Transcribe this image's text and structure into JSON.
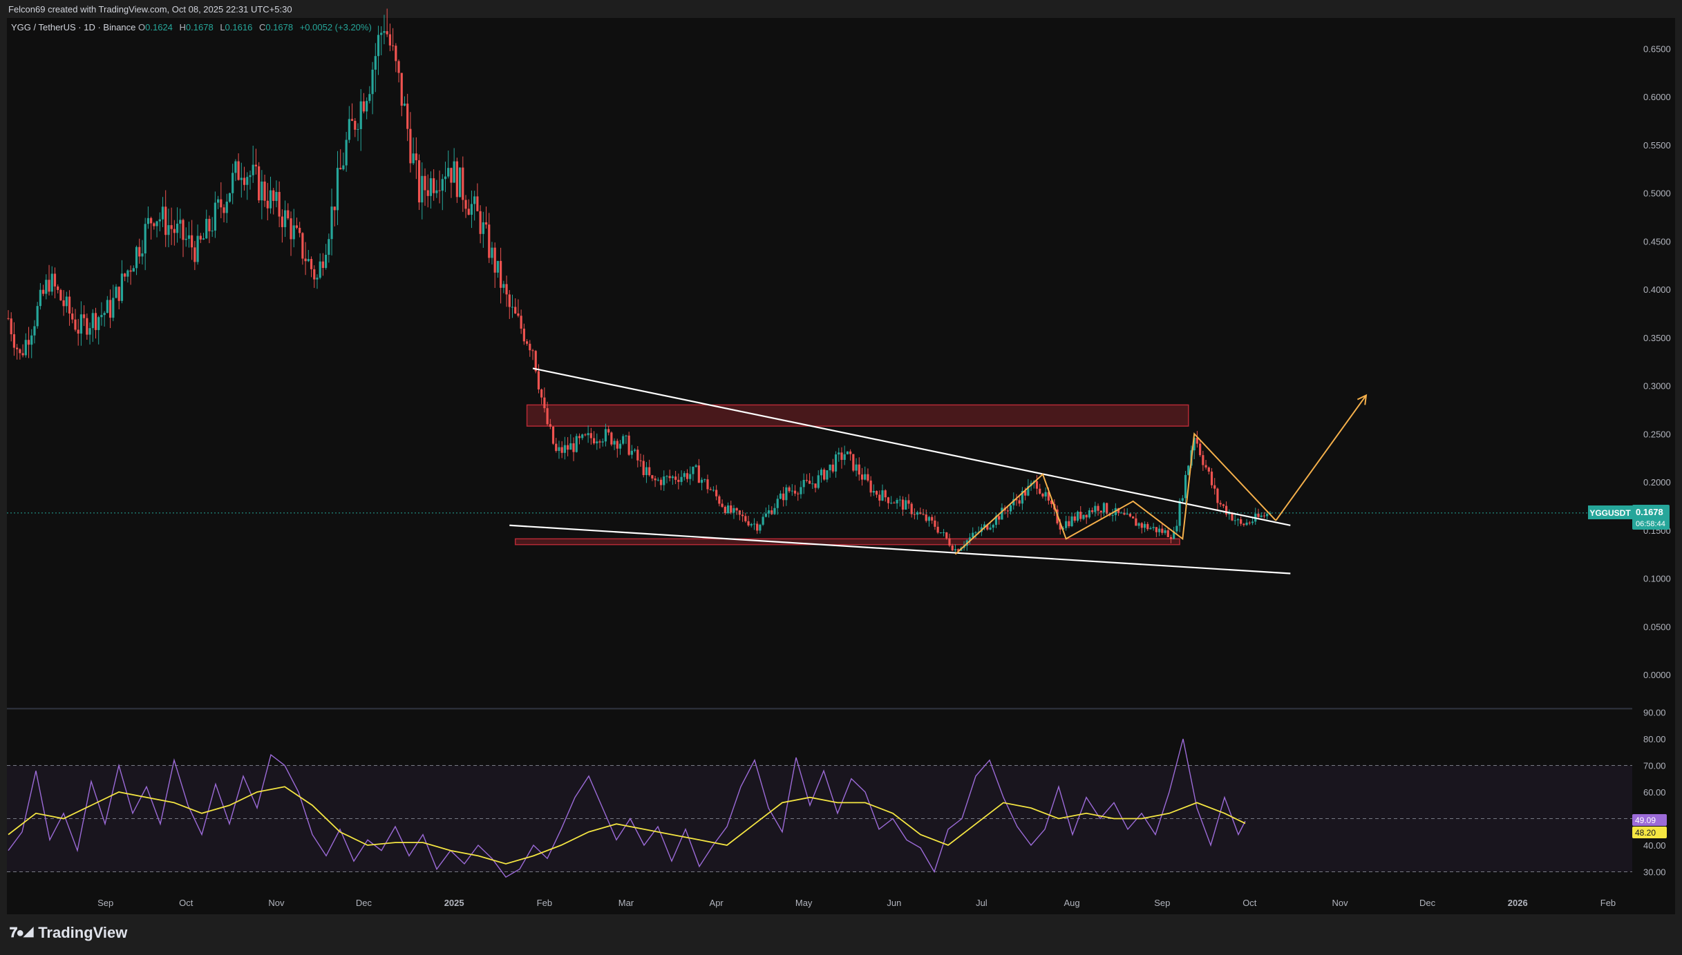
{
  "header": {
    "creator_text": "Felcon69 created with TradingView.com, Oct 08, 2025 22:31 UTC+5:30"
  },
  "legend": {
    "symbol": "YGG / TetherUS · 1D · Binance",
    "open_label": "O",
    "open": "0.1624",
    "high_label": "H",
    "high": "0.1678",
    "low_label": "L",
    "low": "0.1616",
    "close_label": "C",
    "close": "0.1678",
    "change": "+0.0052 (+3.20%)"
  },
  "price_badge": {
    "ticker": "YGGUSDT",
    "price": "0.1678",
    "countdown": "06:58:44"
  },
  "rsi_badges": {
    "rsi": "49.09",
    "ma": "48.20"
  },
  "footer": {
    "brand": "TradingView"
  },
  "colors": {
    "up": "#26a69a",
    "down": "#ef5350",
    "rsi": "#9c6bd8",
    "rsi_ma": "#f5e642",
    "zone": "#b52a35",
    "projection": "#f5b04b",
    "trendline": "#ffffff",
    "background": "#0f0f0f"
  },
  "chart_data": [
    {
      "type": "candlestick",
      "title": "YGG / TetherUS · 1D · Binance",
      "y_ticks": [
        "0.6500",
        "0.6000",
        "0.5500",
        "0.5000",
        "0.4500",
        "0.4000",
        "0.3500",
        "0.3000",
        "0.2500",
        "0.2000",
        "0.1500",
        "0.1000",
        "0.0500",
        "0.0000"
      ],
      "x_ticks": [
        "Sep",
        "Oct",
        "Nov",
        "Dec",
        "2025",
        "Feb",
        "Mar",
        "Apr",
        "May",
        "Jun",
        "Jul",
        "Aug",
        "Sep",
        "Oct",
        "Nov",
        "Dec",
        "2026",
        "Feb"
      ],
      "ylim": [
        0,
        0.68
      ],
      "last_price": 0.1678,
      "price_path": [
        [
          "2024-08-01",
          0.37
        ],
        [
          "2024-08-05",
          0.33
        ],
        [
          "2024-08-15",
          0.41
        ],
        [
          "2024-08-25",
          0.36
        ],
        [
          "2024-09-05",
          0.38
        ],
        [
          "2024-09-20",
          0.48
        ],
        [
          "2024-10-05",
          0.44
        ],
        [
          "2024-10-20",
          0.53
        ],
        [
          "2024-11-05",
          0.47
        ],
        [
          "2024-11-15",
          0.41
        ],
        [
          "2024-11-25",
          0.55
        ],
        [
          "2024-12-03",
          0.62
        ],
        [
          "2024-12-08",
          0.68
        ],
        [
          "2024-12-14",
          0.6
        ],
        [
          "2024-12-20",
          0.5
        ],
        [
          "2024-12-30",
          0.53
        ],
        [
          "2025-01-10",
          0.47
        ],
        [
          "2025-01-20",
          0.38
        ],
        [
          "2025-01-28",
          0.34
        ],
        [
          "2025-02-01",
          0.27
        ],
        [
          "2025-02-05",
          0.23
        ],
        [
          "2025-02-20",
          0.25
        ],
        [
          "2025-03-01",
          0.24
        ],
        [
          "2025-03-10",
          0.2
        ],
        [
          "2025-03-25",
          0.21
        ],
        [
          "2025-04-05",
          0.17
        ],
        [
          "2025-04-15",
          0.155
        ],
        [
          "2025-04-25",
          0.19
        ],
        [
          "2025-05-05",
          0.2
        ],
        [
          "2025-05-15",
          0.23
        ],
        [
          "2025-05-25",
          0.19
        ],
        [
          "2025-06-05",
          0.175
        ],
        [
          "2025-06-15",
          0.155
        ],
        [
          "2025-06-22",
          0.13
        ],
        [
          "2025-07-05",
          0.16
        ],
        [
          "2025-07-20",
          0.2
        ],
        [
          "2025-07-28",
          0.155
        ],
        [
          "2025-08-10",
          0.175
        ],
        [
          "2025-08-25",
          0.155
        ],
        [
          "2025-09-05",
          0.145
        ],
        [
          "2025-09-12",
          0.25
        ],
        [
          "2025-09-20",
          0.18
        ],
        [
          "2025-09-28",
          0.155
        ],
        [
          "2025-10-08",
          0.1678
        ]
      ],
      "resistance_zone": {
        "from": "2025-01-26",
        "to": "2025-09-10",
        "low": 0.258,
        "high": 0.28
      },
      "support_zone": {
        "from": "2025-01-22",
        "to": "2025-09-07",
        "low": 0.135,
        "high": 0.141
      },
      "trendline_upper": [
        [
          "2025-01-28",
          0.318
        ],
        [
          "2025-10-15",
          0.155
        ]
      ],
      "trendline_lower": [
        [
          "2025-01-20",
          0.155
        ],
        [
          "2025-10-15",
          0.105
        ]
      ],
      "pattern_path": [
        [
          "2025-06-22",
          0.125
        ],
        [
          "2025-07-22",
          0.208
        ],
        [
          "2025-07-30",
          0.141
        ],
        [
          "2025-08-22",
          0.18
        ],
        [
          "2025-09-08",
          0.141
        ],
        [
          "2025-09-12",
          0.25
        ],
        [
          "2025-10-10",
          0.16
        ]
      ],
      "projection": [
        [
          "2025-10-10",
          0.16
        ],
        [
          "2025-11-10",
          0.29
        ]
      ]
    },
    {
      "type": "line",
      "title": "RSI",
      "y_ticks": [
        "90.00",
        "80.00",
        "70.00",
        "60.00",
        "50.00",
        "40.00",
        "30.00"
      ],
      "ylim": [
        26,
        92
      ],
      "band": [
        30,
        70
      ],
      "midline": 50,
      "series": [
        {
          "values": [
            [
              0,
              38
            ],
            [
              20,
              45
            ],
            [
              40,
              68
            ],
            [
              60,
              42
            ],
            [
              80,
              52
            ],
            [
              100,
              38
            ],
            [
              120,
              64
            ],
            [
              140,
              48
            ],
            [
              160,
              70
            ],
            [
              180,
              52
            ],
            [
              200,
              62
            ],
            [
              220,
              48
            ],
            [
              240,
              72
            ],
            [
              260,
              55
            ],
            [
              280,
              44
            ],
            [
              300,
              63
            ],
            [
              320,
              48
            ],
            [
              340,
              66
            ],
            [
              360,
              54
            ],
            [
              380,
              74
            ],
            [
              400,
              70
            ],
            [
              420,
              60
            ],
            [
              440,
              44
            ],
            [
              460,
              36
            ],
            [
              480,
              46
            ],
            [
              500,
              34
            ],
            [
              520,
              42
            ],
            [
              540,
              38
            ],
            [
              560,
              47
            ],
            [
              580,
              36
            ],
            [
              600,
              44
            ],
            [
              620,
              31
            ],
            [
              640,
              38
            ],
            [
              660,
              33
            ],
            [
              680,
              40
            ],
            [
              700,
              35
            ],
            [
              720,
              28
            ],
            [
              740,
              31
            ],
            [
              760,
              40
            ],
            [
              780,
              35
            ],
            [
              800,
              46
            ],
            [
              820,
              58
            ],
            [
              840,
              66
            ],
            [
              860,
              54
            ],
            [
              880,
              42
            ],
            [
              900,
              50
            ],
            [
              920,
              40
            ],
            [
              940,
              47
            ],
            [
              960,
              34
            ],
            [
              980,
              46
            ],
            [
              1000,
              32
            ],
            [
              1020,
              40
            ],
            [
              1040,
              47
            ],
            [
              1060,
              62
            ],
            [
              1080,
              72
            ],
            [
              1100,
              54
            ],
            [
              1120,
              45
            ],
            [
              1140,
              73
            ],
            [
              1160,
              55
            ],
            [
              1180,
              68
            ],
            [
              1200,
              52
            ],
            [
              1220,
              65
            ],
            [
              1240,
              60
            ],
            [
              1260,
              46
            ],
            [
              1280,
              50
            ],
            [
              1300,
              42
            ],
            [
              1320,
              39
            ],
            [
              1340,
              30
            ],
            [
              1360,
              46
            ],
            [
              1380,
              50
            ],
            [
              1400,
              66
            ],
            [
              1420,
              72
            ],
            [
              1440,
              58
            ],
            [
              1460,
              47
            ],
            [
              1480,
              40
            ],
            [
              1500,
              46
            ],
            [
              1520,
              62
            ],
            [
              1540,
              44
            ],
            [
              1560,
              58
            ],
            [
              1580,
              50
            ],
            [
              1600,
              56
            ],
            [
              1620,
              46
            ],
            [
              1640,
              52
            ],
            [
              1660,
              44
            ],
            [
              1680,
              60
            ],
            [
              1700,
              80
            ],
            [
              1720,
              54
            ],
            [
              1740,
              40
            ],
            [
              1760,
              58
            ],
            [
              1780,
              44
            ],
            [
              1790,
              49.09
            ]
          ]
        },
        {
          "values": [
            [
              0,
              44
            ],
            [
              40,
              52
            ],
            [
              80,
              50
            ],
            [
              120,
              55
            ],
            [
              160,
              60
            ],
            [
              200,
              58
            ],
            [
              240,
              56
            ],
            [
              280,
              52
            ],
            [
              320,
              55
            ],
            [
              360,
              60
            ],
            [
              400,
              62
            ],
            [
              440,
              55
            ],
            [
              480,
              45
            ],
            [
              520,
              40
            ],
            [
              560,
              41
            ],
            [
              600,
              41
            ],
            [
              640,
              38
            ],
            [
              680,
              36
            ],
            [
              720,
              33
            ],
            [
              760,
              36
            ],
            [
              800,
              40
            ],
            [
              840,
              45
            ],
            [
              880,
              48
            ],
            [
              920,
              46
            ],
            [
              960,
              44
            ],
            [
              1000,
              42
            ],
            [
              1040,
              40
            ],
            [
              1080,
              48
            ],
            [
              1120,
              56
            ],
            [
              1160,
              58
            ],
            [
              1200,
              56
            ],
            [
              1240,
              56
            ],
            [
              1280,
              52
            ],
            [
              1320,
              44
            ],
            [
              1360,
              40
            ],
            [
              1400,
              48
            ],
            [
              1440,
              56
            ],
            [
              1480,
              54
            ],
            [
              1520,
              50
            ],
            [
              1560,
              52
            ],
            [
              1600,
              50
            ],
            [
              1640,
              50
            ],
            [
              1680,
              52
            ],
            [
              1720,
              56
            ],
            [
              1760,
              52
            ],
            [
              1790,
              48.2
            ]
          ]
        }
      ]
    }
  ]
}
